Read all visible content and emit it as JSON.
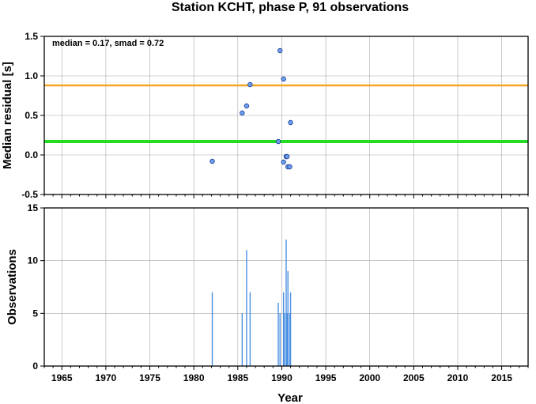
{
  "chart_data": [
    {
      "type": "scatter",
      "title": "Station KCHT, phase P, 91 observations",
      "ylabel": "Median residual [s]",
      "annotation": "median = 0.17, smad = 0.72",
      "xlim": [
        1963,
        2018
      ],
      "ylim": [
        -0.5,
        1.5
      ],
      "yticks": [
        "1.5",
        "1.0",
        "0.5",
        "0.0",
        "-0.5"
      ],
      "ytick_values": [
        1.5,
        1.0,
        0.5,
        0.0,
        -0.5
      ],
      "grid": true,
      "reference_lines": [
        {
          "y": 0.88,
          "color": "#f5a623"
        },
        {
          "y": 0.17,
          "color": "#22dd22"
        }
      ],
      "marker_color": "#6c9ef0",
      "points": [
        {
          "x": 1982.1,
          "y": -0.08
        },
        {
          "x": 1985.5,
          "y": 0.53
        },
        {
          "x": 1986.0,
          "y": 0.62
        },
        {
          "x": 1986.4,
          "y": 0.89
        },
        {
          "x": 1989.6,
          "y": 0.17
        },
        {
          "x": 1989.8,
          "y": 1.32
        },
        {
          "x": 1990.2,
          "y": 0.96
        },
        {
          "x": 1990.2,
          "y": -0.09
        },
        {
          "x": 1990.5,
          "y": -0.02
        },
        {
          "x": 1990.6,
          "y": -0.02
        },
        {
          "x": 1990.7,
          "y": -0.15
        },
        {
          "x": 1990.9,
          "y": -0.15
        },
        {
          "x": 1991.0,
          "y": 0.41
        }
      ]
    },
    {
      "type": "bar",
      "xlabel": "Year",
      "ylabel": "Observations",
      "xlim": [
        1963,
        2018
      ],
      "ylim": [
        0,
        15
      ],
      "yticks": [
        "15",
        "10",
        "5",
        "0"
      ],
      "ytick_values": [
        15,
        10,
        5,
        0
      ],
      "xticks": [
        "1965",
        "1970",
        "1975",
        "1980",
        "1985",
        "1990",
        "1995",
        "2000",
        "2005",
        "2010",
        "2015"
      ],
      "xtick_values": [
        1965,
        1970,
        1975,
        1980,
        1985,
        1990,
        1995,
        2000,
        2005,
        2010,
        2015
      ],
      "grid": true,
      "bar_color": "#4a90e2",
      "bars": [
        {
          "x": 1982.1,
          "y": 7
        },
        {
          "x": 1985.5,
          "y": 5
        },
        {
          "x": 1986.0,
          "y": 11
        },
        {
          "x": 1986.4,
          "y": 7
        },
        {
          "x": 1989.6,
          "y": 6
        },
        {
          "x": 1989.8,
          "y": 5
        },
        {
          "x": 1990.2,
          "y": 7
        },
        {
          "x": 1990.3,
          "y": 5
        },
        {
          "x": 1990.5,
          "y": 12
        },
        {
          "x": 1990.6,
          "y": 5
        },
        {
          "x": 1990.7,
          "y": 9
        },
        {
          "x": 1990.9,
          "y": 5
        },
        {
          "x": 1991.0,
          "y": 7
        }
      ]
    }
  ]
}
